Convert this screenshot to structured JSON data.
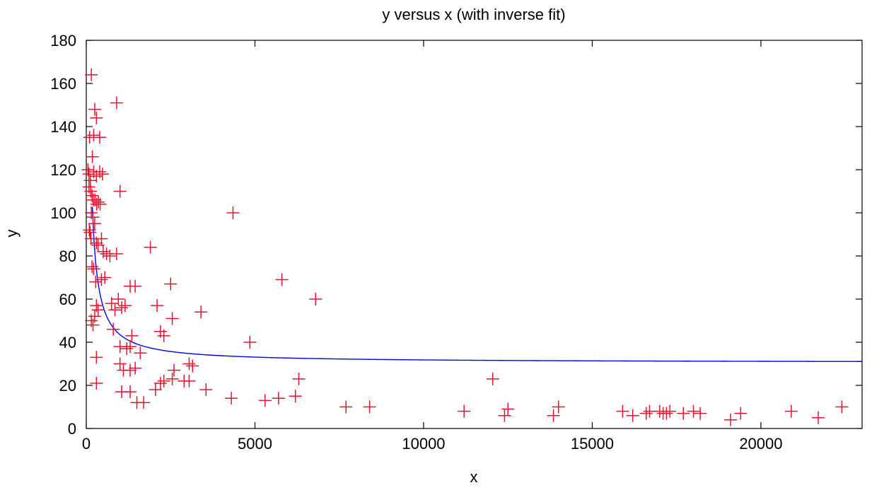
{
  "chart_data": {
    "type": "scatter",
    "title": "y versus x (with inverse fit)",
    "xlabel": "x",
    "ylabel": "y",
    "xlim": [
      0,
      23000
    ],
    "ylim": [
      0,
      180
    ],
    "xticks": [
      0,
      5000,
      10000,
      15000,
      20000
    ],
    "yticks": [
      0,
      20,
      40,
      60,
      80,
      100,
      120,
      140,
      160,
      180
    ],
    "xtick_labels": [
      "0",
      "5000",
      "10000",
      "15000",
      "20000"
    ],
    "ytick_labels": [
      "0",
      "20",
      "40",
      "60",
      "80",
      "100",
      "120",
      "140",
      "160",
      "180"
    ],
    "grid": false,
    "legend": "none",
    "series": [
      {
        "kind": "points",
        "marker": "plus",
        "color": "#e8112d",
        "points": [
          [
            150,
            164
          ],
          [
            100,
            135
          ],
          [
            250,
            148
          ],
          [
            300,
            144
          ],
          [
            400,
            135
          ],
          [
            220,
            136
          ],
          [
            900,
            151
          ],
          [
            50,
            120
          ],
          [
            80,
            118
          ],
          [
            120,
            115
          ],
          [
            180,
            126
          ],
          [
            220,
            119
          ],
          [
            300,
            117
          ],
          [
            400,
            119
          ],
          [
            480,
            118
          ],
          [
            1000,
            110
          ],
          [
            80,
            112
          ],
          [
            130,
            110
          ],
          [
            170,
            108
          ],
          [
            210,
            106
          ],
          [
            260,
            106
          ],
          [
            310,
            104
          ],
          [
            360,
            105
          ],
          [
            410,
            104
          ],
          [
            150,
            100
          ],
          [
            200,
            98
          ],
          [
            250,
            95
          ],
          [
            90,
            92
          ],
          [
            110,
            91
          ],
          [
            140,
            88
          ],
          [
            300,
            86
          ],
          [
            350,
            85
          ],
          [
            450,
            88
          ],
          [
            500,
            82
          ],
          [
            600,
            81
          ],
          [
            700,
            80
          ],
          [
            900,
            81
          ],
          [
            170,
            75
          ],
          [
            220,
            74
          ],
          [
            280,
            68
          ],
          [
            450,
            69
          ],
          [
            550,
            70
          ],
          [
            1300,
            66
          ],
          [
            1450,
            66
          ],
          [
            2500,
            67
          ],
          [
            1900,
            84
          ],
          [
            4350,
            100
          ],
          [
            5800,
            69
          ],
          [
            6800,
            60
          ],
          [
            300,
            57
          ],
          [
            350,
            55
          ],
          [
            750,
            58
          ],
          [
            850,
            55
          ],
          [
            950,
            60
          ],
          [
            1050,
            56
          ],
          [
            1150,
            57
          ],
          [
            2100,
            57
          ],
          [
            2550,
            51
          ],
          [
            3400,
            54
          ],
          [
            150,
            50
          ],
          [
            200,
            48
          ],
          [
            250,
            52
          ],
          [
            800,
            46
          ],
          [
            1350,
            43
          ],
          [
            2200,
            45
          ],
          [
            2300,
            43
          ],
          [
            1000,
            38
          ],
          [
            1200,
            37
          ],
          [
            1300,
            38
          ],
          [
            1600,
            35
          ],
          [
            4850,
            40
          ],
          [
            300,
            33
          ],
          [
            1000,
            30
          ],
          [
            1100,
            27
          ],
          [
            1300,
            27
          ],
          [
            1450,
            28
          ],
          [
            2600,
            27
          ],
          [
            3050,
            30
          ],
          [
            3150,
            29
          ],
          [
            300,
            21
          ],
          [
            1050,
            17
          ],
          [
            1300,
            17
          ],
          [
            2050,
            18
          ],
          [
            2200,
            21
          ],
          [
            2300,
            22
          ],
          [
            2550,
            23
          ],
          [
            2900,
            22
          ],
          [
            3050,
            22
          ],
          [
            3550,
            18
          ],
          [
            1500,
            12
          ],
          [
            1700,
            12
          ],
          [
            4300,
            14
          ],
          [
            5300,
            13
          ],
          [
            5700,
            14
          ],
          [
            6200,
            15
          ],
          [
            6300,
            23
          ],
          [
            7700,
            10
          ],
          [
            8400,
            10
          ],
          [
            11200,
            8
          ],
          [
            12050,
            23
          ],
          [
            12400,
            6
          ],
          [
            12500,
            9
          ],
          [
            13850,
            6
          ],
          [
            14000,
            10
          ],
          [
            15900,
            8
          ],
          [
            16200,
            6
          ],
          [
            16600,
            7
          ],
          [
            16700,
            8
          ],
          [
            17000,
            8
          ],
          [
            17100,
            7
          ],
          [
            17200,
            7
          ],
          [
            17300,
            8
          ],
          [
            17700,
            7
          ],
          [
            18000,
            8
          ],
          [
            18200,
            7
          ],
          [
            19100,
            4
          ],
          [
            19400,
            7
          ],
          [
            20900,
            8
          ],
          [
            21700,
            5
          ],
          [
            22400,
            10
          ]
        ]
      },
      {
        "kind": "line",
        "color": "#0000ee",
        "fit": "inverse",
        "fit_params": {
          "a": 30.5,
          "b": 13000
        },
        "x_range": [
          180,
          23000
        ]
      }
    ]
  }
}
